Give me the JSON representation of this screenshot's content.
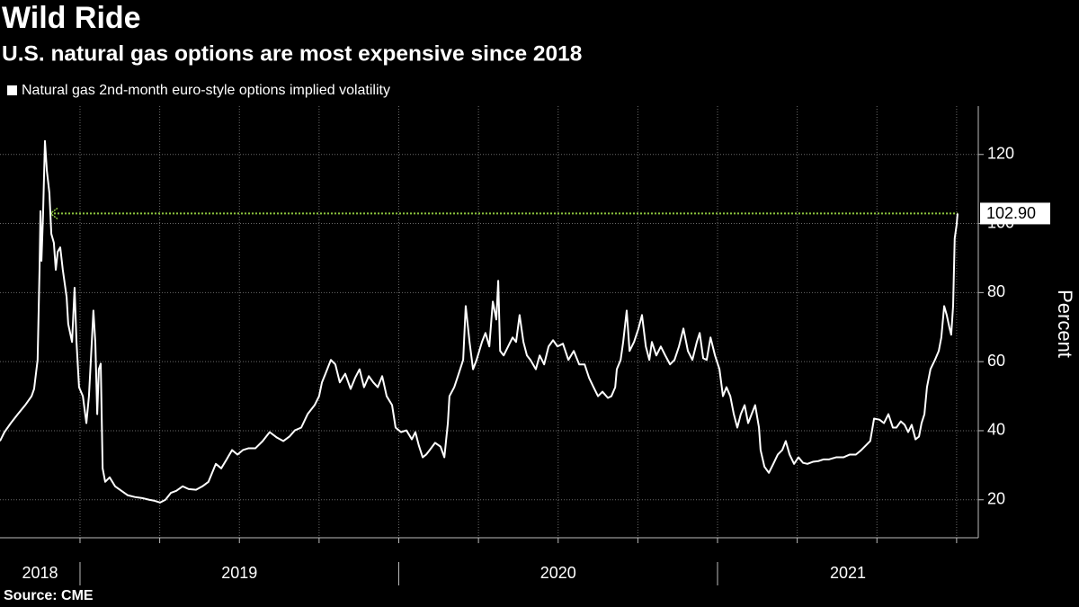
{
  "chart_data": {
    "type": "line",
    "title": "Wild Ride",
    "subtitle": "U.S. natural gas options are most expensive since 2018",
    "y_label": "Percent",
    "source": "Source: CME",
    "x": [
      2018.749,
      2018.763,
      2018.783,
      2018.805,
      2018.828,
      2018.848,
      2018.856,
      2018.867,
      2018.873,
      2018.876,
      2018.879,
      2018.884,
      2018.89,
      2018.896,
      2018.904,
      2018.91,
      2018.918,
      2018.924,
      2018.93,
      2018.938,
      2018.946,
      2018.958,
      2018.963,
      2018.975,
      2018.983,
      2018.989,
      2018.997,
      2019.009,
      2019.02,
      2019.028,
      2019.037,
      2019.042,
      2019.048,
      2019.054,
      2019.059,
      2019.065,
      2019.071,
      2019.079,
      2019.093,
      2019.11,
      2019.13,
      2019.15,
      2019.172,
      2019.195,
      2019.217,
      2019.234,
      2019.251,
      2019.268,
      2019.285,
      2019.302,
      2019.322,
      2019.341,
      2019.364,
      2019.384,
      2019.403,
      2019.426,
      2019.443,
      2019.46,
      2019.477,
      2019.494,
      2019.511,
      2019.528,
      2019.55,
      2019.573,
      2019.595,
      2019.618,
      2019.638,
      2019.657,
      2019.674,
      2019.694,
      2019.714,
      2019.736,
      2019.75,
      2019.759,
      2019.77,
      2019.787,
      2019.801,
      2019.815,
      2019.832,
      2019.849,
      2019.863,
      2019.877,
      2019.891,
      2019.906,
      2019.92,
      2019.934,
      2019.948,
      2019.962,
      2019.979,
      2019.99,
      2020.007,
      2020.024,
      2020.041,
      2020.052,
      2020.063,
      2020.075,
      2020.086,
      2020.097,
      2020.114,
      2020.131,
      2020.143,
      2020.154,
      2020.159,
      2020.174,
      2020.188,
      2020.202,
      2020.21,
      2020.222,
      2020.233,
      2020.244,
      2020.261,
      2020.272,
      2020.284,
      2020.295,
      2020.306,
      2020.312,
      2020.318,
      2020.329,
      2020.343,
      2020.357,
      2020.368,
      2020.379,
      2020.391,
      2020.402,
      2020.413,
      2020.43,
      2020.442,
      2020.456,
      2020.47,
      2020.484,
      2020.498,
      2020.515,
      2020.532,
      2020.549,
      2020.566,
      2020.583,
      2020.597,
      2020.611,
      2020.625,
      2020.639,
      2020.656,
      2020.667,
      2020.679,
      2020.684,
      2020.696,
      2020.704,
      2020.715,
      2020.724,
      2020.738,
      2020.752,
      2020.763,
      2020.775,
      2020.786,
      2020.794,
      2020.808,
      2020.822,
      2020.836,
      2020.851,
      2020.865,
      2020.879,
      2020.893,
      2020.907,
      2020.921,
      2020.935,
      2020.944,
      2020.955,
      2020.966,
      2020.978,
      2020.992,
      2021.006,
      2021.017,
      2021.028,
      2021.04,
      2021.051,
      2021.062,
      2021.073,
      2021.085,
      2021.096,
      2021.107,
      2021.118,
      2021.13,
      2021.135,
      2021.147,
      2021.161,
      2021.175,
      2021.189,
      2021.203,
      2021.214,
      2021.226,
      2021.24,
      2021.254,
      2021.268,
      2021.282,
      2021.299,
      2021.316,
      2021.333,
      2021.35,
      2021.372,
      2021.395,
      2021.415,
      2021.434,
      2021.451,
      2021.465,
      2021.479,
      2021.491,
      2021.508,
      2021.522,
      2021.536,
      2021.55,
      2021.561,
      2021.575,
      2021.587,
      2021.598,
      2021.609,
      2021.621,
      2021.632,
      2021.64,
      2021.649,
      2021.657,
      2021.668,
      2021.682,
      2021.694,
      2021.702,
      2021.711,
      2021.719,
      2021.728,
      2021.733,
      2021.739,
      2021.744,
      2021.75,
      2021.753
    ],
    "series": [
      {
        "name": "Natural gas 2nd-month euro-style options implied volatility",
        "color": "#ffffff",
        "values": [
          37.0,
          39.6,
          42.2,
          44.8,
          47.4,
          50.0,
          52.1,
          60.5,
          86.6,
          103.6,
          89.2,
          102.3,
          123.9,
          115.3,
          108.8,
          97.0,
          94.4,
          86.6,
          91.8,
          93.1,
          86.6,
          78.7,
          70.9,
          65.7,
          81.4,
          65.7,
          52.6,
          50.0,
          42.2,
          50.0,
          65.7,
          74.8,
          65.7,
          44.8,
          57.8,
          59.4,
          29.1,
          25.2,
          26.5,
          23.9,
          22.6,
          21.3,
          20.8,
          20.5,
          20.0,
          19.7,
          19.2,
          20.0,
          22.0,
          22.6,
          23.9,
          23.1,
          22.9,
          23.9,
          25.2,
          30.4,
          29.1,
          31.7,
          34.4,
          33.1,
          34.4,
          34.9,
          34.9,
          37.0,
          39.6,
          38.0,
          37.0,
          38.3,
          40.1,
          40.9,
          44.8,
          47.4,
          50.0,
          54.0,
          56.5,
          60.5,
          59.2,
          54.0,
          56.5,
          52.1,
          55.3,
          57.8,
          52.6,
          55.8,
          54.0,
          52.6,
          55.8,
          50.0,
          47.4,
          40.9,
          39.6,
          40.1,
          37.5,
          39.6,
          35.7,
          32.3,
          33.1,
          34.4,
          36.5,
          35.4,
          32.3,
          42.2,
          50.0,
          52.6,
          56.5,
          60.5,
          76.1,
          65.7,
          57.8,
          60.5,
          65.7,
          68.3,
          64.4,
          77.4,
          72.2,
          83.4,
          63.1,
          61.8,
          64.4,
          67.0,
          65.7,
          73.5,
          65.7,
          61.8,
          60.5,
          57.8,
          61.8,
          59.2,
          64.4,
          66.2,
          64.4,
          65.2,
          60.5,
          63.1,
          59.2,
          59.2,
          55.3,
          52.6,
          50.0,
          51.3,
          49.5,
          50.0,
          52.6,
          57.8,
          60.5,
          65.7,
          74.8,
          63.1,
          65.7,
          69.6,
          73.5,
          64.4,
          60.5,
          65.7,
          61.8,
          64.4,
          61.8,
          59.2,
          60.5,
          64.4,
          69.6,
          63.1,
          60.5,
          65.7,
          68.3,
          61.0,
          60.5,
          67.0,
          61.8,
          57.8,
          50.0,
          52.6,
          50.0,
          44.8,
          40.9,
          44.8,
          47.4,
          42.2,
          44.8,
          47.4,
          40.9,
          34.4,
          29.6,
          27.8,
          30.4,
          33.1,
          34.4,
          37.0,
          33.1,
          30.4,
          32.3,
          30.7,
          30.4,
          31.0,
          31.2,
          31.7,
          31.7,
          32.3,
          32.3,
          33.1,
          33.1,
          34.4,
          35.7,
          37.0,
          43.5,
          43.2,
          42.2,
          44.8,
          40.9,
          40.9,
          42.7,
          41.7,
          39.6,
          41.7,
          37.5,
          38.3,
          42.2,
          44.8,
          52.6,
          57.8,
          60.5,
          63.1,
          67.0,
          76.1,
          73.5,
          69.6,
          67.8,
          76.1,
          95.7,
          99.6,
          102.9
        ]
      }
    ],
    "xlim": [
      2018.749,
      2021.818
    ],
    "xticks": [
      2018,
      2019,
      2020,
      2021
    ],
    "xgrid": [
      2019,
      2019.25,
      2019.5,
      2019.75,
      2020,
      2020.25,
      2020.5,
      2020.75,
      2021,
      2021.25,
      2021.5,
      2021.75
    ],
    "ylim": [
      9,
      134
    ],
    "yticks": [
      20,
      40,
      60,
      80,
      100,
      120
    ],
    "grid": true,
    "annotation": {
      "value": 102.9,
      "label": "102.90",
      "color": "#8dc63f"
    }
  }
}
